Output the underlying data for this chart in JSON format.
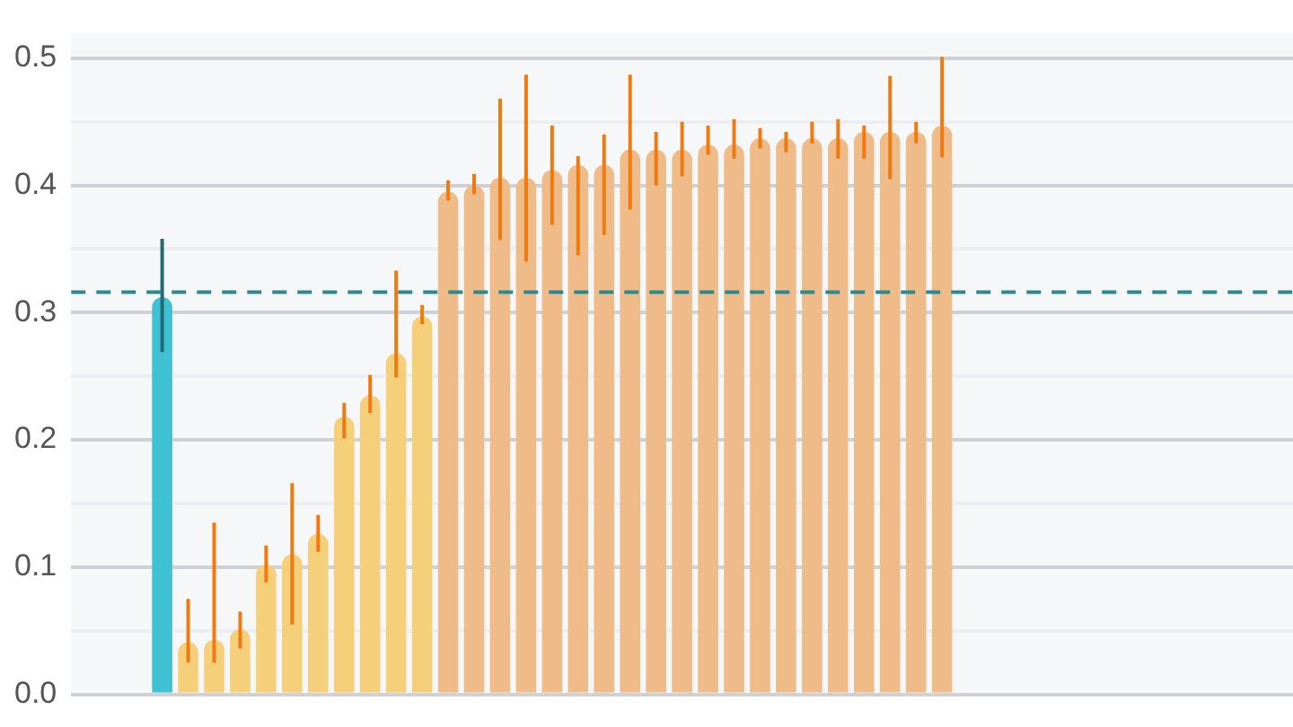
{
  "chart_data": {
    "type": "bar",
    "categories": [
      null,
      null,
      null,
      null,
      null,
      null,
      null,
      null,
      null,
      null,
      null,
      null,
      null,
      null,
      null,
      null,
      null,
      null,
      null,
      null,
      null,
      null,
      null,
      null,
      null,
      null,
      null,
      null,
      null,
      null,
      null,
      null,
      null,
      null,
      null,
      null,
      null,
      null,
      null,
      null,
      null,
      null,
      null,
      null,
      null,
      null,
      null
    ],
    "values": [
      null,
      null,
      null,
      0.312,
      0.041,
      0.043,
      0.051,
      0.102,
      0.11,
      0.126,
      0.218,
      0.235,
      0.268,
      0.297,
      0.395,
      0.4,
      0.406,
      0.406,
      0.412,
      0.416,
      0.416,
      0.428,
      0.428,
      0.428,
      0.432,
      0.432,
      0.437,
      0.437,
      0.437,
      0.437,
      0.442,
      0.442,
      0.442,
      0.447,
      null,
      null,
      null,
      null,
      null,
      null,
      null,
      null,
      null,
      null,
      null,
      null,
      null
    ],
    "errors": [
      null,
      null,
      null,
      [
        0.269,
        0.358
      ],
      [
        0.025,
        0.075
      ],
      [
        0.025,
        0.135
      ],
      [
        0.036,
        0.065
      ],
      [
        0.088,
        0.117
      ],
      [
        0.055,
        0.166
      ],
      [
        0.112,
        0.141
      ],
      [
        0.201,
        0.229
      ],
      [
        0.221,
        0.251
      ],
      [
        0.249,
        0.333
      ],
      [
        0.291,
        0.306
      ],
      [
        0.388,
        0.404
      ],
      [
        0.393,
        0.409
      ],
      [
        0.357,
        0.468
      ],
      [
        0.34,
        0.487
      ],
      [
        0.369,
        0.447
      ],
      [
        0.345,
        0.423
      ],
      [
        0.361,
        0.44
      ],
      [
        0.381,
        0.487
      ],
      [
        0.4,
        0.442
      ],
      [
        0.407,
        0.45
      ],
      [
        0.424,
        0.447
      ],
      [
        0.421,
        0.452
      ],
      [
        0.429,
        0.445
      ],
      [
        0.426,
        0.442
      ],
      [
        0.433,
        0.45
      ],
      [
        0.421,
        0.452
      ],
      [
        0.421,
        0.447
      ],
      [
        0.405,
        0.486
      ],
      [
        0.433,
        0.45
      ],
      [
        0.422,
        0.501
      ],
      null,
      null,
      null,
      null,
      null,
      null,
      null,
      null,
      null,
      null,
      null,
      null,
      null
    ],
    "colors": [
      "#efbb88",
      "#efbb88",
      "#efbb88",
      "#3fc1d3",
      "#f5cf7a",
      "#f5cf7a",
      "#f5cf7a",
      "#f5cf7a",
      "#f5cf7a",
      "#f5cf7a",
      "#f5cf7a",
      "#f5cf7a",
      "#f5cf7a",
      "#f5cf7a",
      "#efbb88",
      "#efbb88",
      "#efbb88",
      "#efbb88",
      "#efbb88",
      "#efbb88",
      "#efbb88",
      "#efbb88",
      "#efbb88",
      "#efbb88",
      "#efbb88",
      "#efbb88",
      "#efbb88",
      "#efbb88",
      "#efbb88",
      "#efbb88",
      "#efbb88",
      "#efbb88",
      "#efbb88",
      "#efbb88",
      "#efbb88",
      "#efbb88",
      "#efbb88",
      "#efbb88",
      "#efbb88",
      "#efbb88",
      "#efbb88",
      "#efbb88",
      "#efbb88",
      "#efbb88",
      "#efbb88",
      "#efbb88",
      "#efbb88"
    ],
    "ylim": [
      0,
      0.52
    ],
    "yticks": [
      {
        "value": 0,
        "label": "0.0"
      },
      {
        "value": 0.05,
        "label": null
      },
      0.1,
      {
        "value": 0.15,
        "label": null
      },
      0.2,
      {
        "value": 0.25,
        "label": null
      },
      0.3,
      {
        "value": 0.35,
        "label": null
      },
      0.4,
      {
        "value": 0.45,
        "label": null
      },
      0.5
    ],
    "ref_lines": [
      {
        "axis": "y",
        "value": 0.316,
        "label": null,
        "color": "#2a8a8f",
        "line_style": "dashed"
      }
    ],
    "grid": "y",
    "legend": false,
    "tick_labels": "y"
  }
}
